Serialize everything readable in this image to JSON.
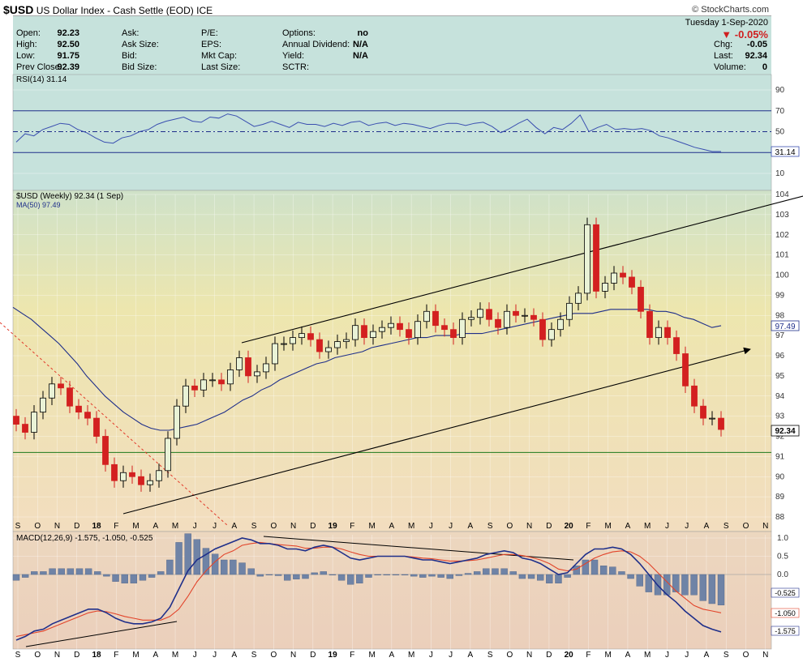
{
  "header": {
    "symbol": "$USD",
    "name": "US Dollar Index - Cash Settle (EOD)",
    "exchange": "ICE",
    "copyright": "© StockCharts.com"
  },
  "quote": {
    "date": "Tuesday  1-Sep-2020",
    "change_pct": "-0.05%",
    "left_col": [
      {
        "label": "Open:",
        "value": "92.23"
      },
      {
        "label": "High:",
        "value": "92.50"
      },
      {
        "label": "Low:",
        "value": "91.75"
      },
      {
        "label": "Prev Close:",
        "value": "92.39"
      }
    ],
    "col2": [
      "Ask:",
      "Ask Size:",
      "Bid:",
      "Bid Size:"
    ],
    "col3": [
      "P/E:",
      "EPS:",
      "Mkt Cap:",
      "Last Size:"
    ],
    "col4": [
      {
        "label": "Options:",
        "value": "no"
      },
      {
        "label": "Annual Dividend:",
        "value": "N/A"
      },
      {
        "label": "Yield:",
        "value": "N/A"
      },
      {
        "label": "SCTR:",
        "value": ""
      }
    ],
    "right_col": [
      {
        "label": "Chg:",
        "value": "-0.05"
      },
      {
        "label": "Last:",
        "value": "92.34"
      },
      {
        "label": "Volume:",
        "value": "0"
      }
    ]
  },
  "chart_data": [
    {
      "type": "line",
      "title": "RSI(14) 31.14",
      "ylim": [
        0,
        100
      ],
      "ticks": [
        10,
        30,
        50,
        70,
        90
      ],
      "tick_labels": [
        "10",
        "",
        "50",
        "70",
        "90"
      ],
      "levels": [
        30,
        50,
        70
      ],
      "last_label": "31.14",
      "series": [
        {
          "name": "RSI(14)",
          "values": [
            40,
            48,
            46,
            52,
            55,
            58,
            57,
            52,
            49,
            44,
            40,
            39,
            44,
            46,
            50,
            52,
            57,
            60,
            62,
            64,
            60,
            59,
            64,
            63,
            67,
            65,
            60,
            55,
            57,
            60,
            57,
            54,
            59,
            57,
            57,
            55,
            58,
            56,
            59,
            60,
            56,
            58,
            59,
            56,
            58,
            57,
            55,
            53,
            56,
            58,
            58,
            56,
            58,
            59,
            55,
            49,
            53,
            58,
            62,
            54,
            48,
            54,
            52,
            58,
            66,
            50,
            54,
            57,
            52,
            53,
            52,
            53,
            51,
            46,
            44,
            41,
            38,
            35,
            33,
            31,
            31
          ]
        }
      ]
    },
    {
      "type": "candlestick",
      "title": "$USD (Weekly) 92.34 (1 Sep)",
      "legend": [
        "MA(50) 97.49"
      ],
      "ylim": [
        87.5,
        104
      ],
      "y_ticks": [
        88,
        89,
        90,
        91,
        92,
        93,
        94,
        95,
        96,
        97,
        98,
        99,
        100,
        101,
        102,
        103,
        104
      ],
      "last_price_label": "92.34",
      "ma_label": "97.49",
      "close": [
        92.6,
        92.2,
        93.2,
        93.9,
        94.6,
        94.4,
        93.5,
        93.2,
        92.9,
        92.0,
        90.6,
        89.8,
        90.2,
        90.0,
        89.6,
        89.8,
        90.3,
        91.9,
        93.5,
        94.5,
        94.3,
        94.8,
        94.8,
        94.6,
        95.3,
        95.9,
        95.0,
        95.2,
        95.6,
        96.6,
        96.6,
        96.9,
        97.1,
        96.8,
        96.2,
        96.4,
        96.7,
        96.8,
        97.5,
        96.9,
        97.2,
        97.4,
        97.6,
        97.3,
        96.9,
        97.7,
        98.2,
        97.5,
        97.3,
        96.9,
        97.8,
        97.9,
        98.3,
        97.8,
        97.4,
        98.2,
        98.0,
        98.0,
        97.8,
        96.8,
        97.3,
        97.8,
        98.6,
        99.1,
        102.5,
        99.2,
        99.6,
        100.1,
        99.9,
        99.4,
        98.2,
        96.9,
        97.4,
        96.9,
        96.1,
        94.5,
        93.5,
        92.9,
        92.9,
        92.34
      ],
      "ma50": [
        98.4,
        98.1,
        97.8,
        97.4,
        97.0,
        96.6,
        96.1,
        95.6,
        95.0,
        94.5,
        94.0,
        93.6,
        93.2,
        92.9,
        92.6,
        92.4,
        92.3,
        92.3,
        92.4,
        92.5,
        92.6,
        92.8,
        93.0,
        93.2,
        93.5,
        93.8,
        94.0,
        94.3,
        94.5,
        94.8,
        95.0,
        95.2,
        95.4,
        95.6,
        95.7,
        95.9,
        96.0,
        96.1,
        96.2,
        96.4,
        96.5,
        96.6,
        96.7,
        96.8,
        96.9,
        96.9,
        97.0,
        97.0,
        97.0,
        97.1,
        97.1,
        97.1,
        97.2,
        97.3,
        97.4,
        97.5,
        97.6,
        97.7,
        97.8,
        97.9,
        98.0,
        98.1,
        98.1,
        98.1,
        98.2,
        98.3,
        98.3,
        98.3,
        98.3,
        98.3,
        98.2,
        98.2,
        98.1,
        97.9,
        97.8,
        97.6,
        97.4,
        97.49
      ],
      "support_level": 91.2,
      "x_labels": [
        "S",
        "O",
        "N",
        "D",
        "18",
        "F",
        "M",
        "A",
        "M",
        "J",
        "J",
        "A",
        "S",
        "O",
        "N",
        "D",
        "19",
        "F",
        "M",
        "A",
        "M",
        "J",
        "J",
        "A",
        "S",
        "O",
        "N",
        "D",
        "20",
        "F",
        "M",
        "A",
        "M",
        "J",
        "J",
        "A",
        "S",
        "O",
        "N"
      ]
    },
    {
      "type": "line",
      "title": "MACD(12,26,9) -1.575, -1.050, -0.525",
      "series_names": [
        "MACD",
        "Signal",
        "Histogram"
      ],
      "ylim": [
        -1.8,
        1.1
      ],
      "y_ticks": [
        "1.0",
        "0.5",
        "0.0"
      ],
      "value_labels": [
        "-0.525",
        "-1.050",
        "-1.575"
      ],
      "macd": [
        -1.8,
        -1.7,
        -1.55,
        -1.5,
        -1.35,
        -1.25,
        -1.15,
        -1.05,
        -0.95,
        -0.95,
        -1.05,
        -1.2,
        -1.3,
        -1.35,
        -1.35,
        -1.3,
        -1.2,
        -0.9,
        -0.4,
        0.1,
        0.4,
        0.55,
        0.7,
        0.8,
        0.9,
        1.0,
        0.95,
        0.85,
        0.85,
        0.8,
        0.7,
        0.7,
        0.65,
        0.75,
        0.8,
        0.75,
        0.6,
        0.45,
        0.4,
        0.45,
        0.5,
        0.5,
        0.5,
        0.5,
        0.45,
        0.4,
        0.4,
        0.35,
        0.3,
        0.35,
        0.4,
        0.45,
        0.55,
        0.6,
        0.65,
        0.6,
        0.45,
        0.4,
        0.3,
        0.15,
        0.0,
        0.05,
        0.3,
        0.55,
        0.7,
        0.7,
        0.75,
        0.7,
        0.55,
        0.3,
        0.0,
        -0.3,
        -0.55,
        -0.75,
        -1.0,
        -1.2,
        -1.4,
        -1.5,
        -1.575
      ],
      "signal": [
        -1.7,
        -1.65,
        -1.6,
        -1.55,
        -1.45,
        -1.35,
        -1.25,
        -1.15,
        -1.05,
        -1.0,
        -1.02,
        -1.08,
        -1.15,
        -1.2,
        -1.25,
        -1.25,
        -1.25,
        -1.15,
        -0.95,
        -0.6,
        -0.2,
        0.1,
        0.35,
        0.55,
        0.65,
        0.8,
        0.85,
        0.88,
        0.85,
        0.82,
        0.8,
        0.78,
        0.72,
        0.72,
        0.75,
        0.75,
        0.7,
        0.62,
        0.55,
        0.5,
        0.5,
        0.5,
        0.5,
        0.5,
        0.48,
        0.45,
        0.43,
        0.4,
        0.37,
        0.37,
        0.38,
        0.4,
        0.45,
        0.5,
        0.55,
        0.55,
        0.52,
        0.47,
        0.4,
        0.3,
        0.15,
        0.1,
        0.15,
        0.3,
        0.45,
        0.55,
        0.62,
        0.65,
        0.62,
        0.5,
        0.3,
        0.05,
        -0.2,
        -0.45,
        -0.65,
        -0.85,
        -0.95,
        -1.0,
        -1.05
      ]
    }
  ]
}
